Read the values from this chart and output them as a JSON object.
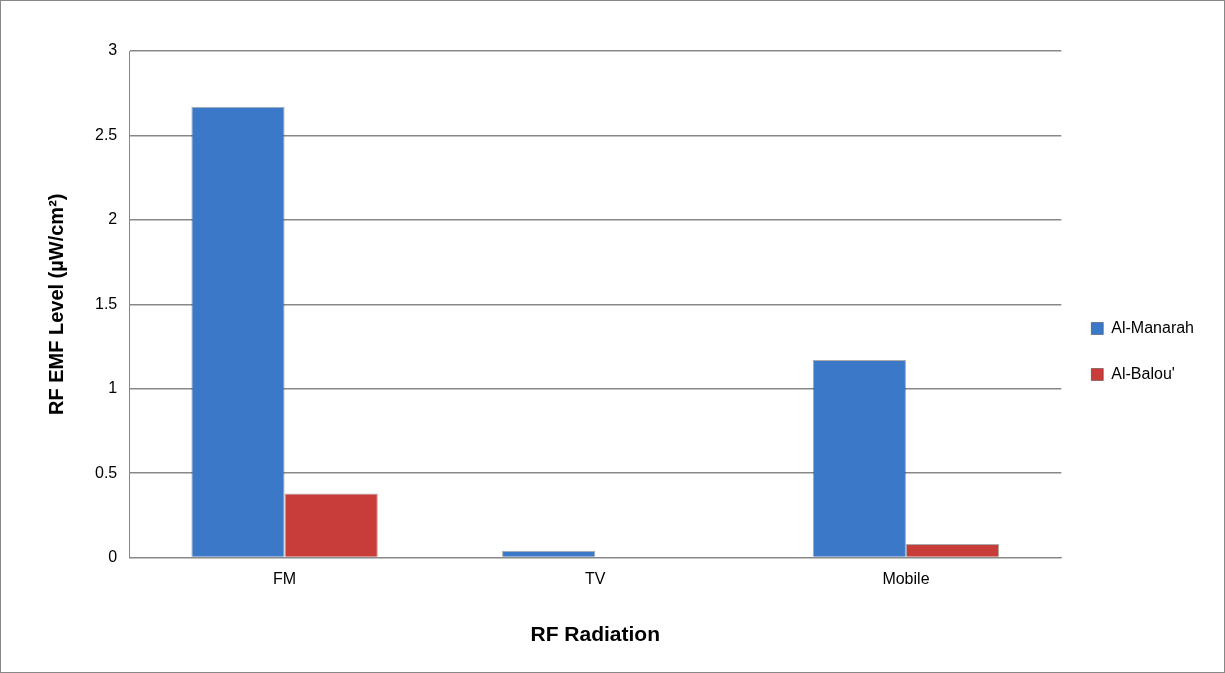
{
  "chart_data": {
    "type": "bar",
    "xlabel": "RF Radiation",
    "ylabel": "RF EMF Level (µW/cm²)",
    "categories": [
      "FM",
      "TV",
      "Mobile"
    ],
    "series": [
      {
        "name": "Al-Manarah",
        "color": "#3c78c8",
        "values": [
          2.67,
          0.04,
          1.17
        ]
      },
      {
        "name": "Al-Balou'",
        "color": "#c83c3a",
        "values": [
          0.38,
          0,
          0.08
        ]
      }
    ],
    "ylim": [
      0,
      3
    ],
    "yticks": [
      0,
      0.5,
      1,
      1.5,
      2,
      2.5,
      3
    ],
    "grid": "y",
    "legend": "right"
  }
}
